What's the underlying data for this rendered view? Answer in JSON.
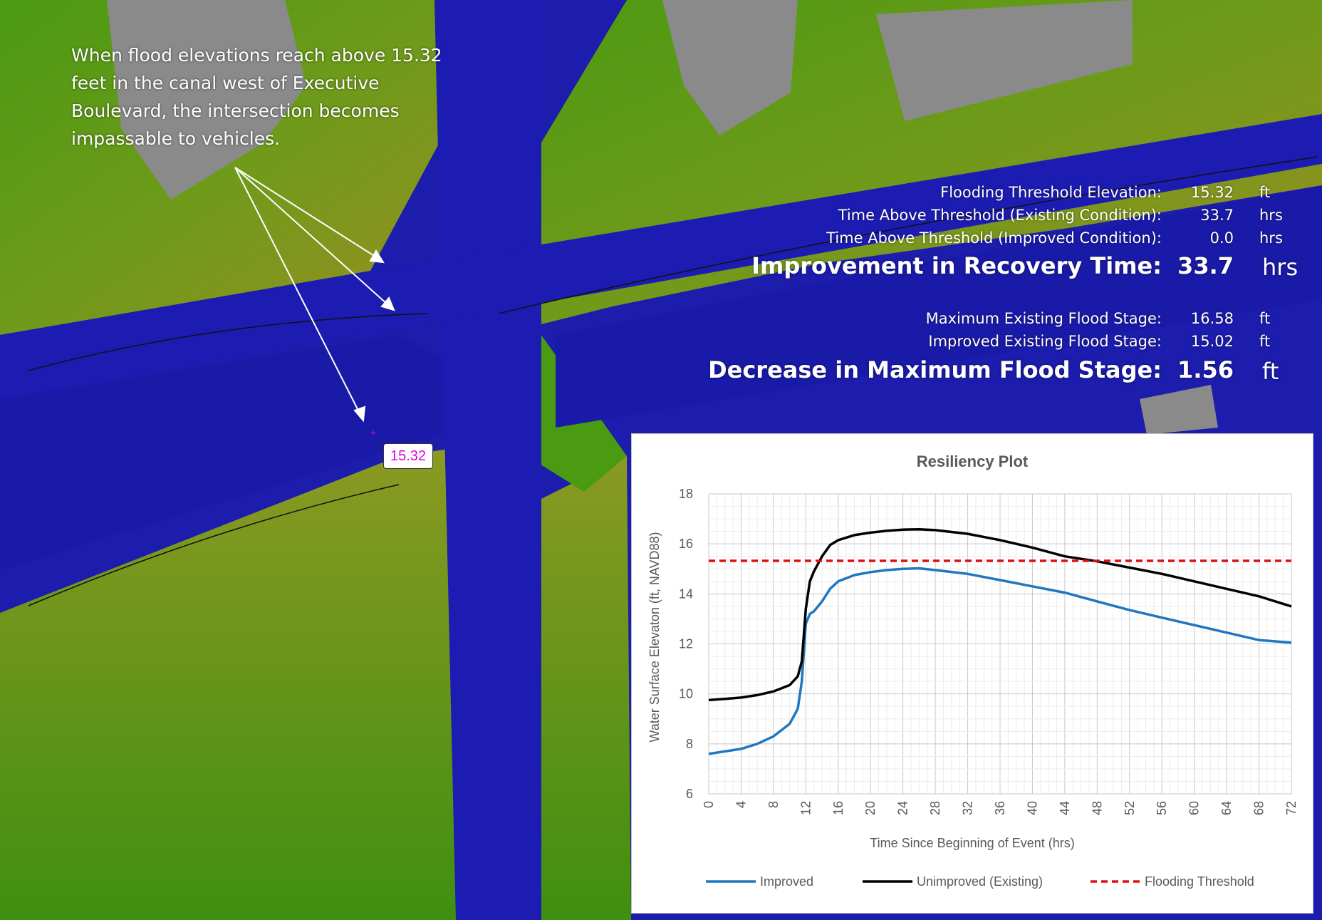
{
  "annotation": {
    "text": "When flood elevations reach above 15.32 feet in the canal west of Executive Boulevard, the intersection becomes impassable to vehicles.",
    "elevation_label": "15.32"
  },
  "stats": {
    "threshold_label": "Flooding Threshold Elevation:",
    "threshold_value": "15.32",
    "threshold_unit": "ft",
    "existing_time_label": "Time Above Threshold (Existing Condition):",
    "existing_time_value": "33.7",
    "existing_time_unit": "hrs",
    "improved_time_label": "Time Above Threshold (Improved Condition):",
    "improved_time_value": "0.0",
    "improved_time_unit": "hrs",
    "recovery_label": "Improvement in Recovery Time:",
    "recovery_value": "33.7",
    "recovery_unit": "hrs",
    "max_existing_label": "Maximum Existing Flood Stage:",
    "max_existing_value": "16.58",
    "max_existing_unit": "ft",
    "improved_stage_label": "Improved Existing Flood Stage:",
    "improved_stage_value": "15.02",
    "improved_stage_unit": "ft",
    "decrease_label": "Decrease in Maximum Flood Stage:",
    "decrease_value": "1.56",
    "decrease_unit": "ft"
  },
  "colors": {
    "water": "#1f1fb0",
    "land_low": "#3f8f10",
    "land_high": "#b0a028",
    "building": "#8a8a8a",
    "improved": "#1f77c0",
    "unimproved": "#000000",
    "threshold": "#e01010"
  },
  "chart_data": {
    "type": "line",
    "title": "Resiliency Plot",
    "xlabel": "Time Since Beginning of Event (hrs)",
    "ylabel": "Water Surface Elevaton (ft, NAVD88)",
    "xlim": [
      0,
      72
    ],
    "ylim": [
      6,
      18
    ],
    "x_ticks": [
      0,
      4,
      8,
      12,
      16,
      20,
      24,
      28,
      32,
      36,
      40,
      44,
      48,
      52,
      56,
      60,
      64,
      68,
      72
    ],
    "y_ticks": [
      6,
      8,
      10,
      12,
      14,
      16,
      18
    ],
    "grid": true,
    "legend_position": "bottom",
    "series": [
      {
        "name": "Improved",
        "color": "#1f77c0",
        "x": [
          0,
          2,
          4,
          6,
          8,
          10,
          11,
          11.5,
          12,
          12.5,
          13,
          14,
          15,
          16,
          18,
          20,
          22,
          24,
          26,
          28,
          32,
          36,
          40,
          44,
          48,
          52,
          56,
          60,
          64,
          68,
          72
        ],
        "y": [
          7.6,
          7.7,
          7.8,
          8.0,
          8.3,
          8.8,
          9.4,
          10.5,
          12.8,
          13.2,
          13.3,
          13.7,
          14.2,
          14.5,
          14.75,
          14.87,
          14.95,
          15.0,
          15.02,
          14.95,
          14.8,
          14.55,
          14.3,
          14.05,
          13.7,
          13.35,
          13.05,
          12.75,
          12.45,
          12.15,
          12.05
        ]
      },
      {
        "name": "Unimproved (Existing)",
        "color": "#000000",
        "x": [
          0,
          2,
          4,
          6,
          8,
          10,
          11,
          11.5,
          12,
          12.5,
          13,
          14,
          15,
          16,
          18,
          20,
          22,
          24,
          26,
          28,
          32,
          36,
          40,
          44,
          48,
          52,
          56,
          60,
          64,
          68,
          72
        ],
        "y": [
          9.75,
          9.8,
          9.85,
          9.95,
          10.1,
          10.35,
          10.7,
          11.3,
          13.4,
          14.5,
          14.9,
          15.5,
          15.95,
          16.15,
          16.35,
          16.45,
          16.52,
          16.57,
          16.58,
          16.55,
          16.4,
          16.15,
          15.85,
          15.5,
          15.3,
          15.05,
          14.8,
          14.5,
          14.2,
          13.9,
          13.5
        ]
      },
      {
        "name": "Flooding Threshold",
        "color": "#e01010",
        "dashed": true,
        "x": [
          0,
          72
        ],
        "y": [
          15.32,
          15.32
        ]
      }
    ]
  }
}
